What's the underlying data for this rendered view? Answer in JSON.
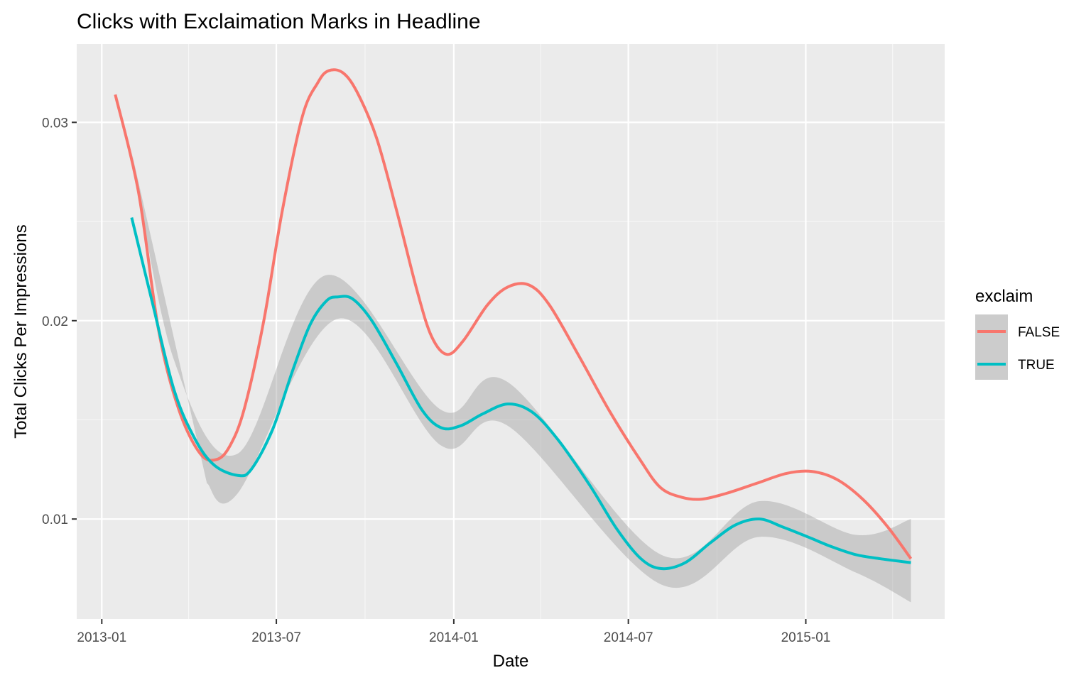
{
  "chart_data": {
    "type": "line",
    "title": "Clicks with Exclaimation Marks in Headline",
    "xlabel": "Date",
    "ylabel": "Total Clicks Per Impressions",
    "x_axis": {
      "kind": "date",
      "range": [
        "2012-12-06",
        "2015-05-25"
      ],
      "ticks": [
        {
          "date": "2013-01-01",
          "label": "2013-01"
        },
        {
          "date": "2013-07-01",
          "label": "2013-07"
        },
        {
          "date": "2014-01-01",
          "label": "2014-01"
        },
        {
          "date": "2014-07-01",
          "label": "2014-07"
        },
        {
          "date": "2015-01-01",
          "label": "2015-01"
        }
      ],
      "minor_ticks": [
        "2013-04-01",
        "2013-10-01",
        "2014-04-01",
        "2014-10-01",
        "2015-04-01"
      ]
    },
    "y_axis": {
      "range": [
        0.00496,
        0.03395
      ],
      "ticks": [
        {
          "value": 0.01,
          "label": "0.01"
        },
        {
          "value": 0.02,
          "label": "0.02"
        },
        {
          "value": 0.03,
          "label": "0.03"
        }
      ],
      "minor_ticks": [
        0.015,
        0.025
      ]
    },
    "grid": true,
    "legend": {
      "title": "exclaim",
      "position": "right",
      "items": [
        "FALSE",
        "TRUE"
      ]
    },
    "series": [
      {
        "name": "FALSE",
        "color": "#F8766D",
        "points": [
          [
            "2013-01-15",
            0.0314
          ],
          [
            "2013-02-08",
            0.0265
          ],
          [
            "2013-03-01",
            0.0195
          ],
          [
            "2013-03-22",
            0.0155
          ],
          [
            "2013-04-13",
            0.0133
          ],
          [
            "2013-04-30",
            0.013
          ],
          [
            "2013-05-14",
            0.0137
          ],
          [
            "2013-05-29",
            0.0156
          ],
          [
            "2013-06-18",
            0.02
          ],
          [
            "2013-07-07",
            0.0255
          ],
          [
            "2013-07-28",
            0.0303
          ],
          [
            "2013-08-13",
            0.032
          ],
          [
            "2013-08-24",
            0.0326
          ],
          [
            "2013-09-08",
            0.0325
          ],
          [
            "2013-09-23",
            0.0315
          ],
          [
            "2013-10-13",
            0.0292
          ],
          [
            "2013-11-03",
            0.0255
          ],
          [
            "2013-11-24",
            0.0215
          ],
          [
            "2013-12-09",
            0.0192
          ],
          [
            "2013-12-25",
            0.0183
          ],
          [
            "2014-01-11",
            0.019
          ],
          [
            "2014-02-05",
            0.0208
          ],
          [
            "2014-02-26",
            0.0217
          ],
          [
            "2014-03-20",
            0.0218
          ],
          [
            "2014-04-10",
            0.0208
          ],
          [
            "2014-05-11",
            0.0182
          ],
          [
            "2014-06-12",
            0.0154
          ],
          [
            "2014-07-13",
            0.013
          ],
          [
            "2014-08-03",
            0.0116
          ],
          [
            "2014-08-25",
            0.0111
          ],
          [
            "2014-09-15",
            0.011
          ],
          [
            "2014-10-11",
            0.0113
          ],
          [
            "2014-11-11",
            0.0118
          ],
          [
            "2014-12-12",
            0.0123
          ],
          [
            "2015-01-07",
            0.0124
          ],
          [
            "2015-02-02",
            0.012
          ],
          [
            "2015-03-01",
            0.011
          ],
          [
            "2015-03-27",
            0.0096
          ],
          [
            "2015-04-20",
            0.008
          ]
        ]
      },
      {
        "name": "TRUE",
        "color": "#00BFC4",
        "points": [
          [
            "2013-02-01",
            0.0252
          ],
          [
            "2013-02-22",
            0.021
          ],
          [
            "2013-03-17",
            0.0165
          ],
          [
            "2013-04-08",
            0.014
          ],
          [
            "2013-04-28",
            0.0127
          ],
          [
            "2013-05-22",
            0.0122
          ],
          [
            "2013-06-05",
            0.0125
          ],
          [
            "2013-06-27",
            0.0145
          ],
          [
            "2013-07-18",
            0.0175
          ],
          [
            "2013-08-05",
            0.0198
          ],
          [
            "2013-08-22",
            0.021
          ],
          [
            "2013-09-03",
            0.0212
          ],
          [
            "2013-09-18",
            0.0211
          ],
          [
            "2013-10-08",
            0.02
          ],
          [
            "2013-11-03",
            0.0178
          ],
          [
            "2013-11-29",
            0.0155
          ],
          [
            "2013-12-19",
            0.0146
          ],
          [
            "2014-01-08",
            0.0147
          ],
          [
            "2014-01-31",
            0.0153
          ],
          [
            "2014-02-26",
            0.0158
          ],
          [
            "2014-03-23",
            0.0154
          ],
          [
            "2014-04-19",
            0.014
          ],
          [
            "2014-05-22",
            0.0117
          ],
          [
            "2014-06-19",
            0.0095
          ],
          [
            "2014-07-14",
            0.008
          ],
          [
            "2014-08-04",
            0.0075
          ],
          [
            "2014-08-29",
            0.0078
          ],
          [
            "2014-09-24",
            0.0088
          ],
          [
            "2014-10-20",
            0.0097
          ],
          [
            "2014-11-14",
            0.01
          ],
          [
            "2014-12-08",
            0.0096
          ],
          [
            "2015-01-03",
            0.0091
          ],
          [
            "2015-01-28",
            0.0086
          ],
          [
            "2015-02-22",
            0.0082
          ],
          [
            "2015-03-19",
            0.008
          ],
          [
            "2015-04-20",
            0.0078
          ]
        ],
        "band": {
          "upper": [
            [
              "2013-02-01",
              0.0285
            ],
            [
              "2013-03-17",
              0.018
            ],
            [
              "2013-05-22",
              0.0133
            ],
            [
              "2013-08-22",
              0.0223
            ],
            [
              "2013-12-19",
              0.0155
            ],
            [
              "2014-02-26",
              0.0169
            ],
            [
              "2014-08-04",
              0.0082
            ],
            [
              "2014-11-14",
              0.0109
            ],
            [
              "2015-02-22",
              0.0092
            ],
            [
              "2015-04-20",
              0.01
            ]
          ],
          "lower": [
            [
              "2013-04-20",
              0.0118
            ],
            [
              "2013-05-22",
              0.0113
            ],
            [
              "2013-09-03",
              0.0201
            ],
            [
              "2013-12-19",
              0.0137
            ],
            [
              "2014-02-26",
              0.0147
            ],
            [
              "2014-08-04",
              0.0067
            ],
            [
              "2014-11-14",
              0.0091
            ],
            [
              "2015-02-22",
              0.0073
            ],
            [
              "2015-04-20",
              0.0058
            ]
          ]
        }
      }
    ]
  }
}
